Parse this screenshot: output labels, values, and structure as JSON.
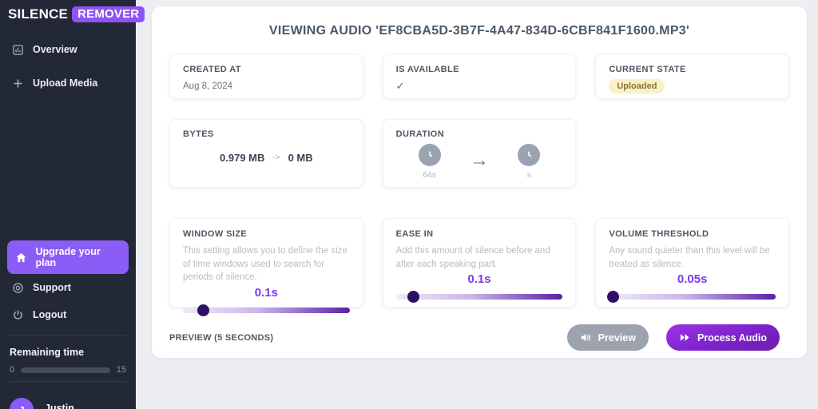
{
  "brand": {
    "primary": "SILENCE",
    "badge": "REMOVER"
  },
  "sidebar": {
    "nav": [
      {
        "label": "Overview"
      },
      {
        "label": "Upload Media"
      }
    ],
    "upgrade_label": "Upgrade your plan",
    "support_label": "Support",
    "logout_label": "Logout",
    "remaining": {
      "label": "Remaining time",
      "min": "0",
      "max": "15"
    },
    "user": {
      "initial": "J",
      "name": "Justin"
    }
  },
  "main": {
    "title": "VIEWING AUDIO 'EF8CBA5D-3B7F-4A47-834D-6CBF841F1600.MP3'",
    "created_at": {
      "label": "CREATED AT",
      "value": "Aug 8, 2024"
    },
    "is_available": {
      "label": "IS AVAILABLE",
      "value": "✓"
    },
    "current_state": {
      "label": "CURRENT STATE",
      "badge": "Uploaded"
    },
    "bytes": {
      "label": "BYTES",
      "before": "0.979 MB",
      "arrow": "->",
      "after": "0 MB"
    },
    "duration": {
      "label": "DURATION",
      "before": "64s",
      "arrow": "→",
      "after": "s"
    },
    "settings": [
      {
        "label": "WINDOW SIZE",
        "description": "This setting allows you to define the size of time windows used to search for periods of silence.",
        "value": "0.1s",
        "percent": 12
      },
      {
        "label": "EASE IN",
        "description": "Add this amount of silence before and after each speaking part.",
        "value": "0.1s",
        "percent": 10
      },
      {
        "label": "VOLUME THRESHOLD",
        "description": "Any sound quieter than this level will be treated as silence.",
        "value": "0.05s",
        "percent": 2
      }
    ],
    "footer": {
      "preview_label": "PREVIEW (5 SECONDS)",
      "preview_button": "Preview",
      "process_button": "Process Audio"
    }
  },
  "colors": {
    "accent_purple": "#8b5cf6",
    "slider_dark_purple": "#5b21a8",
    "sidebar_bg": "#232836",
    "state_badge_bg": "#faf0c5"
  }
}
